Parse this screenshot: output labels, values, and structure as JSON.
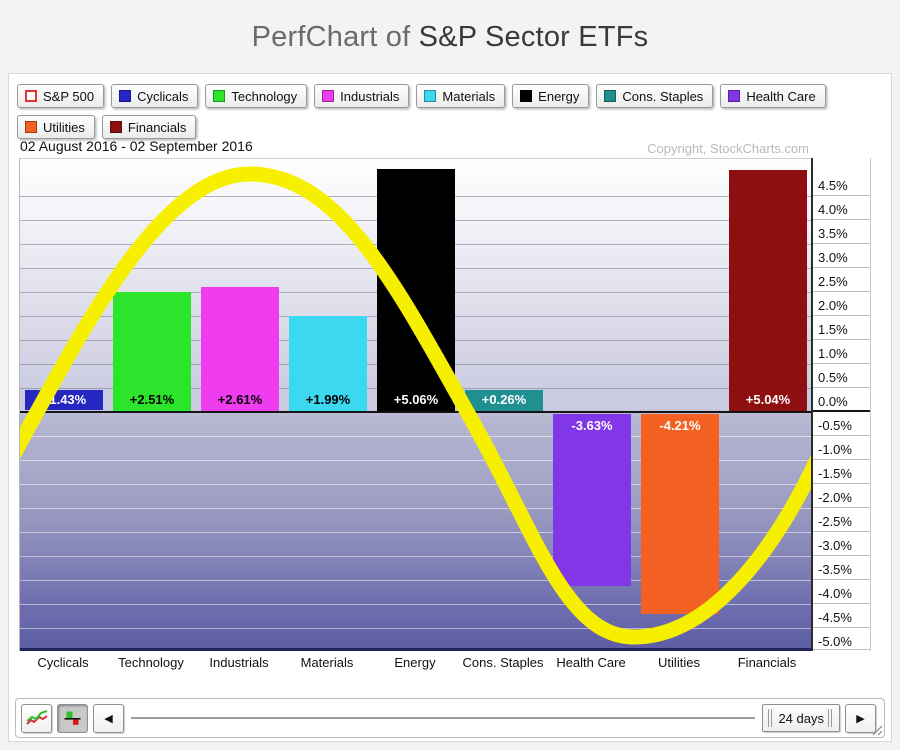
{
  "title": {
    "prefix": "PerfChart of ",
    "main": "S&P Sector ETFs"
  },
  "legend": {
    "rows": [
      [
        {
          "label": "S&P 500",
          "swatch": "#ffffff",
          "outline": "#e23232",
          "type": "outline"
        },
        {
          "label": "Cyclicals",
          "swatch": "#2626c8",
          "type": "solid"
        },
        {
          "label": "Technology",
          "swatch": "#2ce42c",
          "type": "solid"
        },
        {
          "label": "Industrials",
          "swatch": "#ee3cee",
          "type": "solid"
        },
        {
          "label": "Materials",
          "swatch": "#3cd8f0",
          "type": "solid"
        },
        {
          "label": "Energy",
          "swatch": "#000000",
          "type": "solid"
        },
        {
          "label": "Cons. Staples",
          "swatch": "#1f8f8f",
          "type": "solid"
        },
        {
          "label": "Health Care",
          "swatch": "#8136e8",
          "type": "solid"
        }
      ],
      [
        {
          "label": "Utilities",
          "swatch": "#f26122",
          "type": "solid"
        },
        {
          "label": "Financials",
          "swatch": "#8e0f0f",
          "type": "solid"
        }
      ]
    ]
  },
  "chart_data": {
    "type": "bar",
    "title": "PerfChart of S&P Sector ETFs",
    "period_label": "02 August 2016 - 02 September 2016",
    "copyright": "Copyright, StockCharts.com",
    "categories": [
      "Cyclicals",
      "Technology",
      "Industrials",
      "Materials",
      "Energy",
      "Cons. Staples",
      "Health Care",
      "Utilities",
      "Financials"
    ],
    "values": [
      1.43,
      2.51,
      2.61,
      1.99,
      5.06,
      0.26,
      -3.63,
      -4.21,
      5.04
    ],
    "value_labels": [
      "+1.43%",
      "+2.51%",
      "+2.61%",
      "+1.99%",
      "+5.06%",
      "+0.26%",
      "-3.63%",
      "-4.21%",
      "+5.04%"
    ],
    "bar_colors": [
      "#2626c2",
      "#2ce42c",
      "#ee3cee",
      "#3cd8f0",
      "#000000",
      "#1f8f8f",
      "#8136e8",
      "#f26122",
      "#8e0f0f"
    ],
    "label_text_colors": [
      "#ffffff",
      "#000000",
      "#000000",
      "#000000",
      "#ffffff",
      "#ffffff",
      "#ffffff",
      "#ffffff",
      "#ffffff"
    ],
    "bars_rendered_as_label_only": [
      "Cyclicals"
    ],
    "xlabel": "",
    "ylabel": "",
    "ylim": [
      -5.0,
      5.0
    ],
    "y_tick_step": 0.5,
    "y_tick_labels": [
      "4.5%",
      "4.0%",
      "3.5%",
      "3.0%",
      "2.5%",
      "2.0%",
      "1.5%",
      "1.0%",
      "0.5%",
      "0.0%",
      "-0.5%",
      "-1.0%",
      "-1.5%",
      "-2.0%",
      "-2.5%",
      "-3.0%",
      "-3.5%",
      "-4.0%",
      "-4.5%",
      "-5.0%"
    ],
    "grid": true,
    "legend_position": "top",
    "annotation": {
      "type": "freehand-sine-wave",
      "color": "#f6ef00",
      "description": "thick yellow market-cycle sine wave drawn over the bars"
    }
  },
  "toolbar": {
    "line_mode_icon": "line-chart-icon",
    "bar_mode_icon": "bar-chart-icon",
    "bar_mode_active": true,
    "left_arrow": "◀",
    "right_arrow": "▶",
    "period_value": "24 days"
  },
  "colors": {
    "accent_yellow": "#f6ef00",
    "zero_line": "#141414",
    "negative_region_bottom": "#5c5ca4"
  }
}
